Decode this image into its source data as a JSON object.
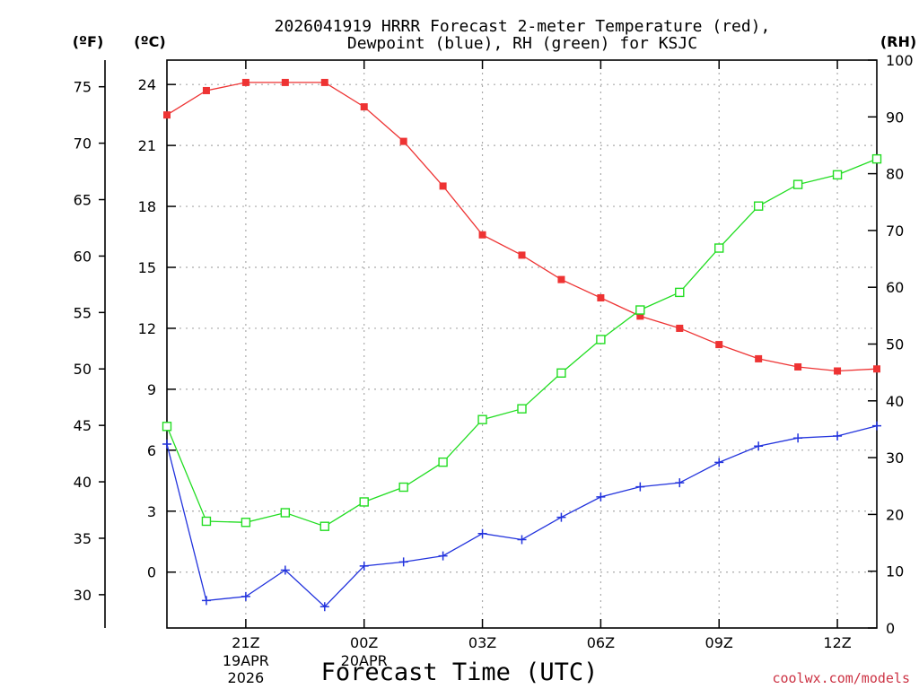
{
  "chart_data": {
    "type": "line",
    "title_line1": "2026041919 HRRR Forecast 2-meter Temperature (red),",
    "title_line2": "Dewpoint (blue), RH (green) for KSJC",
    "xlabel": "Forecast Time (UTC)",
    "credit": "coolwx.com/models",
    "left_outer_unit": "(ºF)",
    "left_inner_unit": "(ºC)",
    "right_unit": "(RH)",
    "hours": [
      19,
      20,
      21,
      22,
      23,
      24,
      25,
      26,
      27,
      28,
      29,
      30,
      31,
      32,
      33,
      34,
      35,
      36,
      37
    ],
    "xlim": [
      19,
      37
    ],
    "x_ticks": [
      {
        "hour": 21,
        "label": "21Z",
        "sub1": "19APR",
        "sub2": "2026"
      },
      {
        "hour": 24,
        "label": "00Z",
        "sub1": "20APR",
        "sub2": ""
      },
      {
        "hour": 27,
        "label": "03Z",
        "sub1": "",
        "sub2": ""
      },
      {
        "hour": 30,
        "label": "06Z",
        "sub1": "",
        "sub2": ""
      },
      {
        "hour": 33,
        "label": "09Z",
        "sub1": "",
        "sub2": ""
      },
      {
        "hour": 36,
        "label": "12Z",
        "sub1": "",
        "sub2": ""
      }
    ],
    "celsius_axis": {
      "range": [
        -2.75,
        25.2
      ],
      "ticks": [
        0,
        3,
        6,
        9,
        12,
        15,
        18,
        21,
        24
      ]
    },
    "fahrenheit_axis": {
      "ticks": [
        30,
        35,
        40,
        45,
        50,
        55,
        60,
        65,
        70,
        75
      ]
    },
    "rh_axis": {
      "range": [
        0,
        100
      ],
      "ticks": [
        0,
        10,
        20,
        30,
        40,
        50,
        60,
        70,
        80,
        90,
        100
      ]
    },
    "grid": true,
    "series": [
      {
        "name": "Temperature",
        "axis": "celsius",
        "color": "#ee3333",
        "marker": "filled-square",
        "values": [
          22.5,
          23.7,
          24.1,
          24.1,
          24.1,
          22.9,
          21.2,
          19.0,
          16.6,
          15.6,
          14.4,
          13.5,
          12.6,
          12.0,
          11.2,
          10.5,
          10.1,
          9.9,
          10.0
        ]
      },
      {
        "name": "Dewpoint",
        "axis": "celsius",
        "color": "#2233dd",
        "marker": "plus",
        "values": [
          6.3,
          -1.4,
          -1.2,
          0.1,
          -1.7,
          0.3,
          0.5,
          0.8,
          1.9,
          1.6,
          2.7,
          3.7,
          4.2,
          4.4,
          5.4,
          6.2,
          6.6,
          6.7,
          7.2
        ]
      },
      {
        "name": "RH",
        "axis": "rh",
        "color": "#22dd22",
        "marker": "open-square",
        "values": [
          35.5,
          18.8,
          18.6,
          20.3,
          17.9,
          22.2,
          24.8,
          29.2,
          36.7,
          38.6,
          44.9,
          50.8,
          56.0,
          59.1,
          66.9,
          74.3,
          78.1,
          79.8,
          82.6
        ]
      }
    ]
  }
}
